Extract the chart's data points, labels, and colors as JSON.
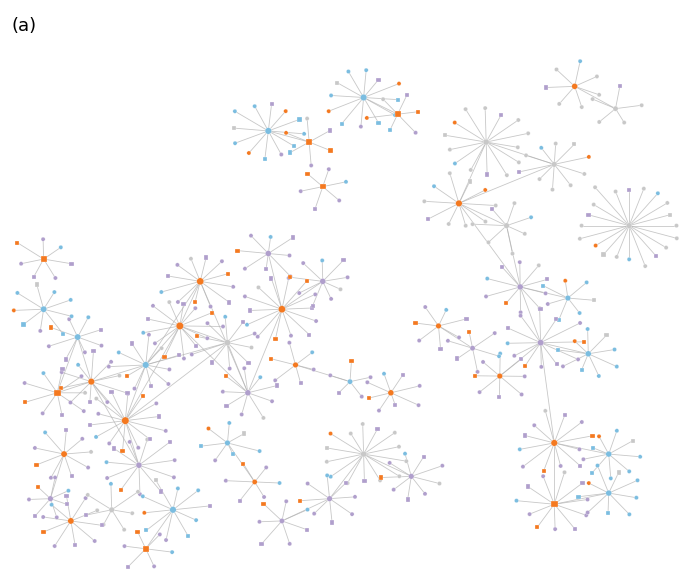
{
  "label": "(a)",
  "background_color": "#ffffff",
  "edge_color": "#b0b0b0",
  "edge_alpha": 0.7,
  "edge_linewidth": 0.6,
  "node_colors": {
    "purple": "#b09fcc",
    "blue": "#7bbde0",
    "orange": "#f47920",
    "gray": "#c8c8c8"
  },
  "figsize": [
    7.0,
    5.85
  ],
  "dpi": 100
}
